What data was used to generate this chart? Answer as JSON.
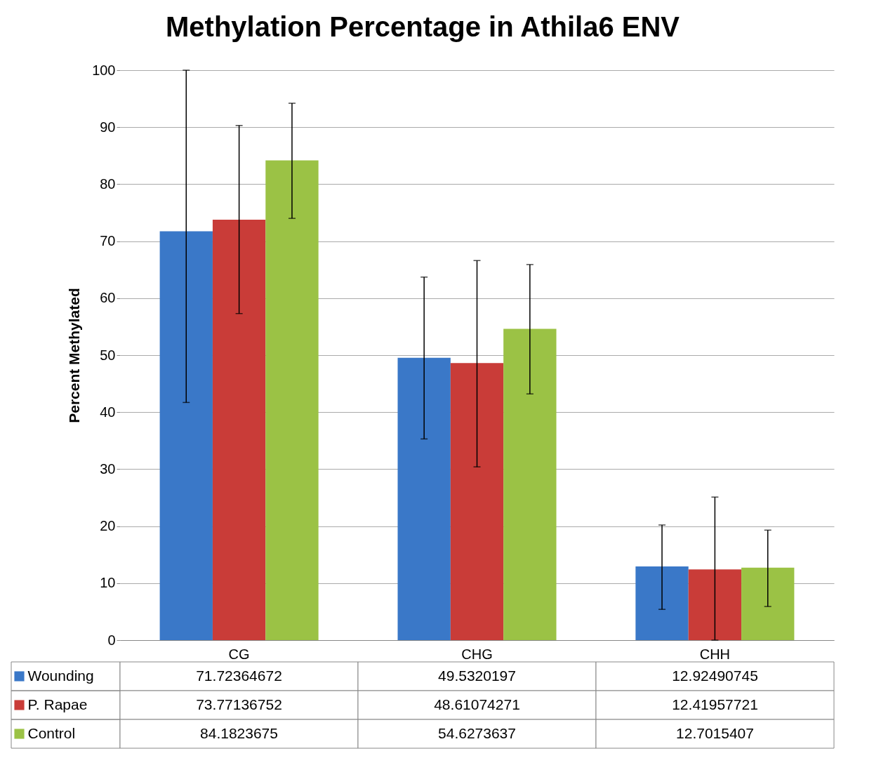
{
  "chart_data": {
    "type": "bar",
    "title": "Methylation Percentage in Athila6 ENV",
    "ylabel": "Percent Methylated",
    "categories": [
      "CG",
      "CHG",
      "CHH"
    ],
    "series": [
      {
        "name": "Wounding",
        "color": "#3a78c8",
        "values": [
          71.72364672,
          49.5320197,
          12.92490745
        ],
        "errors": [
          [
            41.7,
            100
          ],
          [
            35.3,
            63.7
          ],
          [
            5.4,
            20.2
          ]
        ]
      },
      {
        "name": "P. Rapae",
        "color": "#c93c38",
        "values": [
          73.77136752,
          48.61074271,
          12.41957721
        ],
        "errors": [
          [
            57.3,
            90.3
          ],
          [
            30.4,
            66.6
          ],
          [
            0,
            25.1
          ]
        ]
      },
      {
        "name": "Control",
        "color": "#9bc245",
        "values": [
          84.1823675,
          54.6273637,
          12.7015407
        ],
        "errors": [
          [
            74.0,
            94.2
          ],
          [
            43.2,
            65.9
          ],
          [
            5.9,
            19.3
          ]
        ]
      }
    ],
    "ylim": [
      0,
      100
    ],
    "yticks": [
      0,
      10,
      20,
      30,
      40,
      50,
      60,
      70,
      80,
      90,
      100
    ],
    "grid": "y",
    "data_labels": true,
    "legend": "bottom left"
  }
}
